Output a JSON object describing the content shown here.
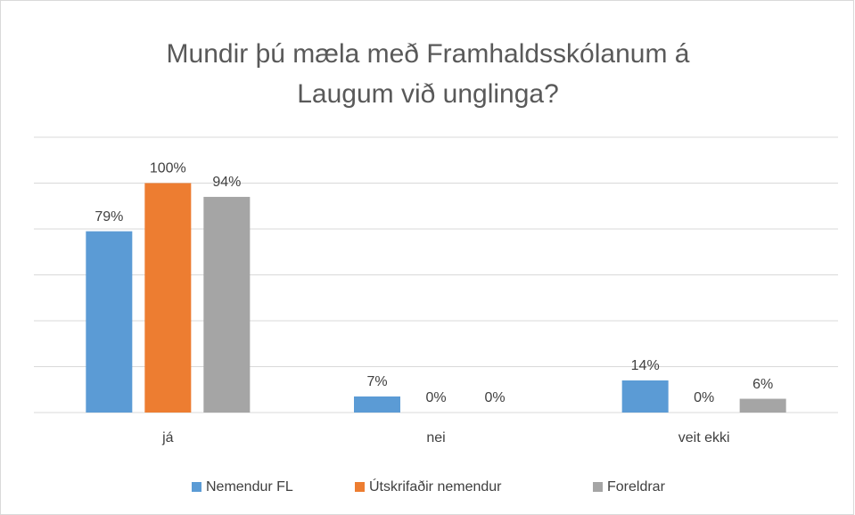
{
  "chart_data": {
    "type": "bar",
    "title": "Mundir þú mæla með Framhaldsskólanum á Laugum við unglinga?",
    "categories": [
      "já",
      "nei",
      "veit ekki"
    ],
    "series": [
      {
        "name": "Nemendur FL",
        "color": "#5b9bd5",
        "values": [
          79,
          7,
          14
        ],
        "value_labels": [
          "79%",
          "7%",
          "14%"
        ]
      },
      {
        "name": "Útskrifaðir nemendur",
        "color": "#ed7d31",
        "values": [
          100,
          0,
          0
        ],
        "value_labels": [
          "100%",
          "0%",
          "0%"
        ]
      },
      {
        "name": "Foreldrar",
        "color": "#a5a5a5",
        "values": [
          94,
          0,
          6
        ],
        "value_labels": [
          "94%",
          "0%",
          "6%"
        ]
      }
    ],
    "ylim": [
      0,
      120
    ],
    "yticks": [
      0,
      20,
      40,
      60,
      80,
      100,
      120
    ],
    "grid": true,
    "legend": "bottom"
  }
}
